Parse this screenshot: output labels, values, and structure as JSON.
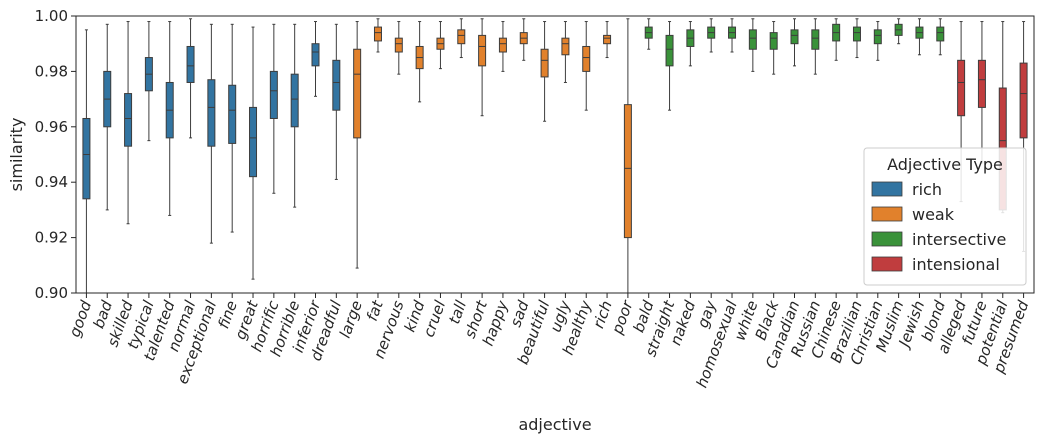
{
  "chart_data": {
    "type": "box",
    "xlabel": "adjective",
    "ylabel": "similarity",
    "ylim": [
      0.9,
      1.0
    ],
    "yticks": [
      "0.90",
      "0.92",
      "0.94",
      "0.96",
      "0.98",
      "1.00"
    ],
    "grid": false,
    "legend": {
      "title": "Adjective Type",
      "placement": "right",
      "entries": [
        {
          "name": "rich",
          "color": "#3274a1"
        },
        {
          "name": "weak",
          "color": "#e1812c"
        },
        {
          "name": "intersective",
          "color": "#3a923a"
        },
        {
          "name": "intensional",
          "color": "#c03d3e"
        }
      ]
    },
    "boxes": [
      {
        "label": "good",
        "type": "rich",
        "whislo": 0.9,
        "q1": 0.934,
        "med": 0.95,
        "q3": 0.963,
        "whishi": 0.995
      },
      {
        "label": "bad",
        "type": "rich",
        "whislo": 0.93,
        "q1": 0.96,
        "med": 0.97,
        "q3": 0.98,
        "whishi": 0.997
      },
      {
        "label": "skilled",
        "type": "rich",
        "whislo": 0.925,
        "q1": 0.953,
        "med": 0.963,
        "q3": 0.972,
        "whishi": 0.998
      },
      {
        "label": "typical",
        "type": "rich",
        "whislo": 0.955,
        "q1": 0.973,
        "med": 0.979,
        "q3": 0.985,
        "whishi": 0.998
      },
      {
        "label": "talented",
        "type": "rich",
        "whislo": 0.928,
        "q1": 0.956,
        "med": 0.966,
        "q3": 0.976,
        "whishi": 0.998
      },
      {
        "label": "normal",
        "type": "rich",
        "whislo": 0.956,
        "q1": 0.976,
        "med": 0.982,
        "q3": 0.989,
        "whishi": 0.999
      },
      {
        "label": "exceptional",
        "type": "rich",
        "whislo": 0.918,
        "q1": 0.953,
        "med": 0.967,
        "q3": 0.977,
        "whishi": 0.997
      },
      {
        "label": "fine",
        "type": "rich",
        "whislo": 0.922,
        "q1": 0.954,
        "med": 0.966,
        "q3": 0.975,
        "whishi": 0.997
      },
      {
        "label": "great",
        "type": "rich",
        "whislo": 0.905,
        "q1": 0.942,
        "med": 0.956,
        "q3": 0.967,
        "whishi": 0.996
      },
      {
        "label": "horrific",
        "type": "rich",
        "whislo": 0.936,
        "q1": 0.963,
        "med": 0.973,
        "q3": 0.98,
        "whishi": 0.997
      },
      {
        "label": "horrible",
        "type": "rich",
        "whislo": 0.931,
        "q1": 0.96,
        "med": 0.97,
        "q3": 0.979,
        "whishi": 0.997
      },
      {
        "label": "inferior",
        "type": "rich",
        "whislo": 0.971,
        "q1": 0.982,
        "med": 0.987,
        "q3": 0.99,
        "whishi": 0.998
      },
      {
        "label": "dreadful",
        "type": "rich",
        "whislo": 0.941,
        "q1": 0.966,
        "med": 0.976,
        "q3": 0.984,
        "whishi": 0.997
      },
      {
        "label": "large",
        "type": "weak",
        "whislo": 0.909,
        "q1": 0.956,
        "med": 0.979,
        "q3": 0.988,
        "whishi": 0.998
      },
      {
        "label": "fat",
        "type": "weak",
        "whislo": 0.987,
        "q1": 0.991,
        "med": 0.994,
        "q3": 0.996,
        "whishi": 0.999
      },
      {
        "label": "nervous",
        "type": "weak",
        "whislo": 0.979,
        "q1": 0.987,
        "med": 0.99,
        "q3": 0.992,
        "whishi": 0.998
      },
      {
        "label": "kind",
        "type": "weak",
        "whislo": 0.969,
        "q1": 0.981,
        "med": 0.985,
        "q3": 0.989,
        "whishi": 0.998
      },
      {
        "label": "cruel",
        "type": "weak",
        "whislo": 0.981,
        "q1": 0.988,
        "med": 0.99,
        "q3": 0.992,
        "whishi": 0.998
      },
      {
        "label": "tall",
        "type": "weak",
        "whislo": 0.985,
        "q1": 0.99,
        "med": 0.993,
        "q3": 0.995,
        "whishi": 0.999
      },
      {
        "label": "short",
        "type": "weak",
        "whislo": 0.964,
        "q1": 0.982,
        "med": 0.989,
        "q3": 0.993,
        "whishi": 0.999
      },
      {
        "label": "happy",
        "type": "weak",
        "whislo": 0.98,
        "q1": 0.987,
        "med": 0.99,
        "q3": 0.992,
        "whishi": 0.998
      },
      {
        "label": "sad",
        "type": "weak",
        "whislo": 0.984,
        "q1": 0.99,
        "med": 0.992,
        "q3": 0.994,
        "whishi": 0.999
      },
      {
        "label": "beautiful",
        "type": "weak",
        "whislo": 0.962,
        "q1": 0.978,
        "med": 0.984,
        "q3": 0.988,
        "whishi": 0.998
      },
      {
        "label": "ugly",
        "type": "weak",
        "whislo": 0.976,
        "q1": 0.986,
        "med": 0.99,
        "q3": 0.992,
        "whishi": 0.998
      },
      {
        "label": "healthy",
        "type": "weak",
        "whislo": 0.966,
        "q1": 0.98,
        "med": 0.985,
        "q3": 0.989,
        "whishi": 0.998
      },
      {
        "label": "rich",
        "type": "weak",
        "whislo": 0.985,
        "q1": 0.99,
        "med": 0.992,
        "q3": 0.993,
        "whishi": 0.998
      },
      {
        "label": "poor",
        "type": "weak",
        "whislo": 0.9,
        "q1": 0.92,
        "med": 0.945,
        "q3": 0.968,
        "whishi": 0.999
      },
      {
        "label": "bald",
        "type": "intersective",
        "whislo": 0.988,
        "q1": 0.992,
        "med": 0.994,
        "q3": 0.996,
        "whishi": 0.999
      },
      {
        "label": "straight",
        "type": "intersective",
        "whislo": 0.966,
        "q1": 0.982,
        "med": 0.988,
        "q3": 0.993,
        "whishi": 0.998
      },
      {
        "label": "naked",
        "type": "intersective",
        "whislo": 0.982,
        "q1": 0.989,
        "med": 0.992,
        "q3": 0.995,
        "whishi": 0.998
      },
      {
        "label": "gay",
        "type": "intersective",
        "whislo": 0.987,
        "q1": 0.992,
        "med": 0.994,
        "q3": 0.996,
        "whishi": 0.999
      },
      {
        "label": "homosexual",
        "type": "intersective",
        "whislo": 0.987,
        "q1": 0.992,
        "med": 0.994,
        "q3": 0.996,
        "whishi": 0.999
      },
      {
        "label": "white",
        "type": "intersective",
        "whislo": 0.98,
        "q1": 0.988,
        "med": 0.992,
        "q3": 0.995,
        "whishi": 0.999
      },
      {
        "label": "Black",
        "type": "intersective",
        "whislo": 0.979,
        "q1": 0.988,
        "med": 0.992,
        "q3": 0.994,
        "whishi": 0.998
      },
      {
        "label": "Canadian",
        "type": "intersective",
        "whislo": 0.982,
        "q1": 0.99,
        "med": 0.993,
        "q3": 0.995,
        "whishi": 0.999
      },
      {
        "label": "Russian",
        "type": "intersective",
        "whislo": 0.979,
        "q1": 0.988,
        "med": 0.992,
        "q3": 0.995,
        "whishi": 0.999
      },
      {
        "label": "Chinese",
        "type": "intersective",
        "whislo": 0.984,
        "q1": 0.991,
        "med": 0.994,
        "q3": 0.997,
        "whishi": 0.999
      },
      {
        "label": "Brazilian",
        "type": "intersective",
        "whislo": 0.985,
        "q1": 0.991,
        "med": 0.994,
        "q3": 0.996,
        "whishi": 0.999
      },
      {
        "label": "Christian",
        "type": "intersective",
        "whislo": 0.984,
        "q1": 0.99,
        "med": 0.993,
        "q3": 0.995,
        "whishi": 0.998
      },
      {
        "label": "Muslim",
        "type": "intersective",
        "whislo": 0.99,
        "q1": 0.993,
        "med": 0.995,
        "q3": 0.997,
        "whishi": 0.999
      },
      {
        "label": "Jewish",
        "type": "intersective",
        "whislo": 0.986,
        "q1": 0.992,
        "med": 0.994,
        "q3": 0.996,
        "whishi": 0.999
      },
      {
        "label": "blond",
        "type": "intersective",
        "whislo": 0.986,
        "q1": 0.991,
        "med": 0.994,
        "q3": 0.996,
        "whishi": 0.999
      },
      {
        "label": "alleged",
        "type": "intensional",
        "whislo": 0.933,
        "q1": 0.964,
        "med": 0.976,
        "q3": 0.984,
        "whishi": 0.998
      },
      {
        "label": "future",
        "type": "intensional",
        "whislo": 0.947,
        "q1": 0.967,
        "med": 0.977,
        "q3": 0.984,
        "whishi": 0.998
      },
      {
        "label": "potential",
        "type": "intensional",
        "whislo": 0.929,
        "q1": 0.93,
        "med": 0.955,
        "q3": 0.974,
        "whishi": 0.998
      },
      {
        "label": "presumed",
        "type": "intensional",
        "whislo": 0.915,
        "q1": 0.956,
        "med": 0.972,
        "q3": 0.983,
        "whishi": 0.998
      }
    ]
  }
}
